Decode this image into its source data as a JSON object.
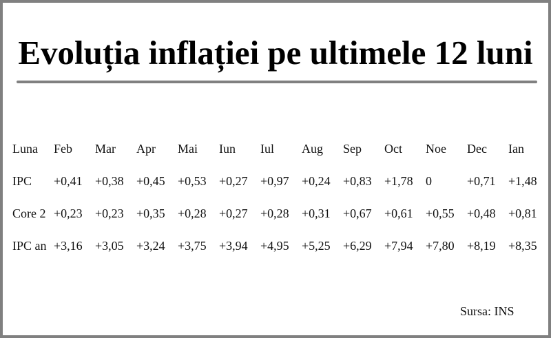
{
  "header": {
    "title": "Evoluția inflației pe ultimele 12 luni"
  },
  "table": {
    "columns": [
      "Luna",
      "Feb",
      "Mar",
      "Apr",
      "Mai",
      "Iun",
      "Iul",
      "Aug",
      "Sep",
      "Oct",
      "Noe",
      "Dec",
      "Ian"
    ],
    "rows": [
      [
        "IPC",
        "+0,41",
        "+0,38",
        "+0,45",
        "+0,53",
        "+0,27",
        "+0,97",
        "+0,24",
        "+0,83",
        "+1,78",
        "0",
        "+0,71",
        "+1,48"
      ],
      [
        "Core 2",
        "+0,23",
        "+0,23",
        "+0,35",
        "+0,28",
        "+0,27",
        "+0,28",
        "+0,31",
        "+0,67",
        "+0,61",
        "+0,55",
        "+0,48",
        "+0,81"
      ],
      [
        "IPC an",
        "+3,16",
        "+3,05",
        "+3,24",
        "+3,75",
        "+3,94",
        "+4,95",
        "+5,25",
        "+6,29",
        "+7,94",
        "+7,80",
        "+8,19",
        "+8,35"
      ]
    ]
  },
  "footer": {
    "source": "Sursa: INS"
  }
}
